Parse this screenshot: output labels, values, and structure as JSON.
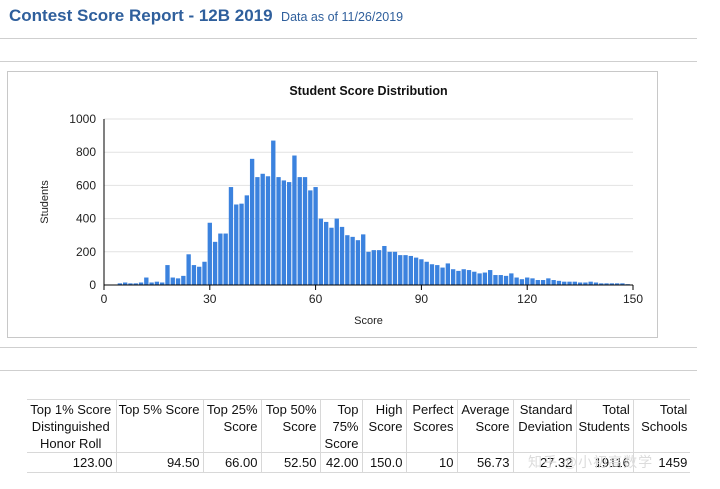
{
  "header": {
    "title": "Contest Score Report -  12B 2019",
    "subtitle": "Data as of 11/26/2019"
  },
  "chart_data": {
    "type": "bar",
    "title": "Student Score Distribution",
    "xlabel": "Score",
    "ylabel": "Students",
    "xlim": [
      0,
      150
    ],
    "ylim": [
      0,
      1000
    ],
    "x_ticks": [
      0,
      30,
      60,
      90,
      120,
      150
    ],
    "y_ticks": [
      0,
      200,
      400,
      600,
      800,
      1000
    ],
    "grid": true,
    "legend": "none",
    "bar_color": "#3b82de",
    "x": [
      4.5,
      6,
      7.5,
      9,
      10.5,
      12,
      13.5,
      15,
      16.5,
      18,
      19.5,
      21,
      22.5,
      24,
      25.5,
      27,
      28.5,
      30,
      31.5,
      33,
      34.5,
      36,
      37.5,
      39,
      40.5,
      42,
      43.5,
      45,
      46.5,
      48,
      49.5,
      51,
      52.5,
      54,
      55.5,
      57,
      58.5,
      60,
      61.5,
      63,
      64.5,
      66,
      67.5,
      69,
      70.5,
      72,
      73.5,
      75,
      76.5,
      78,
      79.5,
      81,
      82.5,
      84,
      85.5,
      87,
      88.5,
      90,
      91.5,
      93,
      94.5,
      96,
      97.5,
      99,
      100.5,
      102,
      103.5,
      105,
      106.5,
      108,
      109.5,
      111,
      112.5,
      114,
      115.5,
      117,
      118.5,
      120,
      121.5,
      123,
      124.5,
      126,
      127.5,
      129,
      130.5,
      132,
      133.5,
      135,
      136.5,
      138,
      139.5,
      141,
      142.5,
      144,
      145.5,
      147,
      148.5
    ],
    "values": [
      10,
      15,
      10,
      10,
      15,
      45,
      15,
      20,
      15,
      120,
      45,
      40,
      55,
      185,
      120,
      110,
      140,
      375,
      260,
      310,
      310,
      590,
      485,
      490,
      540,
      760,
      650,
      670,
      655,
      870,
      650,
      630,
      620,
      780,
      650,
      650,
      570,
      590,
      400,
      380,
      345,
      400,
      350,
      300,
      290,
      270,
      305,
      200,
      210,
      210,
      235,
      200,
      200,
      180,
      180,
      175,
      165,
      155,
      140,
      125,
      120,
      105,
      130,
      95,
      85,
      95,
      90,
      80,
      70,
      75,
      90,
      60,
      60,
      55,
      70,
      45,
      35,
      45,
      40,
      30,
      30,
      40,
      30,
      25,
      20,
      20,
      20,
      15,
      15,
      20,
      15,
      10,
      10,
      10,
      10,
      10,
      5
    ]
  },
  "table": {
    "headers": [
      [
        "Top 1% Score",
        "Distinguished",
        "Honor Roll"
      ],
      [
        "Top 5% Score"
      ],
      [
        "Top 25%",
        "Score"
      ],
      [
        "Top 50%",
        "Score"
      ],
      [
        "Top",
        "75%",
        "Score"
      ],
      [
        "High",
        "Score"
      ],
      [
        "Perfect",
        "Scores"
      ],
      [
        "Average",
        "Score"
      ],
      [
        "Standard",
        "Deviation"
      ],
      [
        "Total",
        "Students"
      ],
      [
        "Total",
        "Schools"
      ]
    ],
    "values": [
      "123.00",
      "94.50",
      "66.00",
      "52.50",
      "42.00",
      "150.0",
      "10",
      "56.73",
      "27.32",
      "19116",
      "1459"
    ]
  },
  "watermark": "知乎 @小初高数学"
}
